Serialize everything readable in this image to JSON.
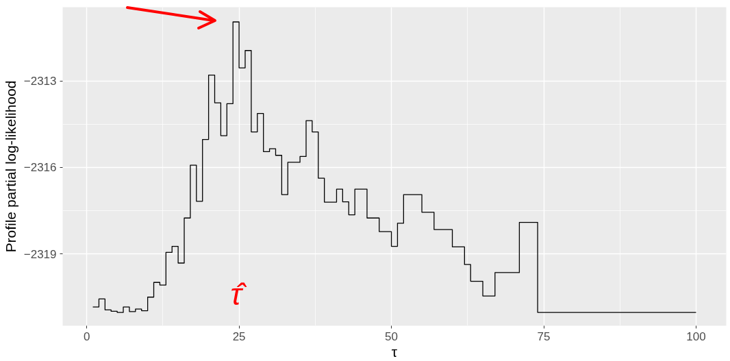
{
  "chart_data": {
    "type": "step",
    "xlabel": "τ",
    "ylabel": "Profile partial log-likelihood",
    "x": [
      1,
      2,
      3,
      4,
      5,
      6,
      7,
      8,
      9,
      10,
      11,
      12,
      13,
      14,
      15,
      16,
      17,
      18,
      19,
      20,
      21,
      22,
      23,
      24,
      25,
      26,
      27,
      28,
      29,
      30,
      31,
      32,
      33,
      35,
      36,
      37,
      38,
      39,
      41,
      42,
      43,
      44,
      46,
      48,
      50,
      51,
      52,
      55,
      57,
      60,
      62,
      63,
      65,
      67,
      71,
      74,
      100
    ],
    "series": [
      {
        "color": "#000000",
        "values": [
          -2320.83,
          -2320.55,
          -2320.93,
          -2320.98,
          -2321.02,
          -2320.83,
          -2320.99,
          -2320.9,
          -2320.96,
          -2320.49,
          -2319.98,
          -2320.07,
          -2318.94,
          -2318.73,
          -2319.31,
          -2317.75,
          -2315.92,
          -2317.17,
          -2315.03,
          -2312.8,
          -2313.76,
          -2314.9,
          -2313.79,
          -2310.96,
          -2312.55,
          -2311.95,
          -2314.77,
          -2314.13,
          -2315.45,
          -2315.35,
          -2315.58,
          -2316.94,
          -2315.82,
          -2315.62,
          -2314.38,
          -2314.77,
          -2316.37,
          -2317.2,
          -2316.75,
          -2317.19,
          -2317.64,
          -2316.75,
          -2317.75,
          -2318.22,
          -2318.73,
          -2317.93,
          -2316.94,
          -2317.55,
          -2318.15,
          -2318.75,
          -2319.36,
          -2319.94,
          -2320.45,
          -2319.64,
          -2317.9,
          -2321.02,
          -2321.02
        ]
      }
    ],
    "annotations": [
      "τ̂"
    ],
    "xlim": [
      -3.95,
      104.95
    ],
    "ylim": [
      -2321.48,
      -2310.45
    ],
    "xticks": [
      0,
      25,
      50,
      75,
      100
    ],
    "yticks": [
      -2319,
      -2316,
      -2313
    ],
    "grid": true
  }
}
